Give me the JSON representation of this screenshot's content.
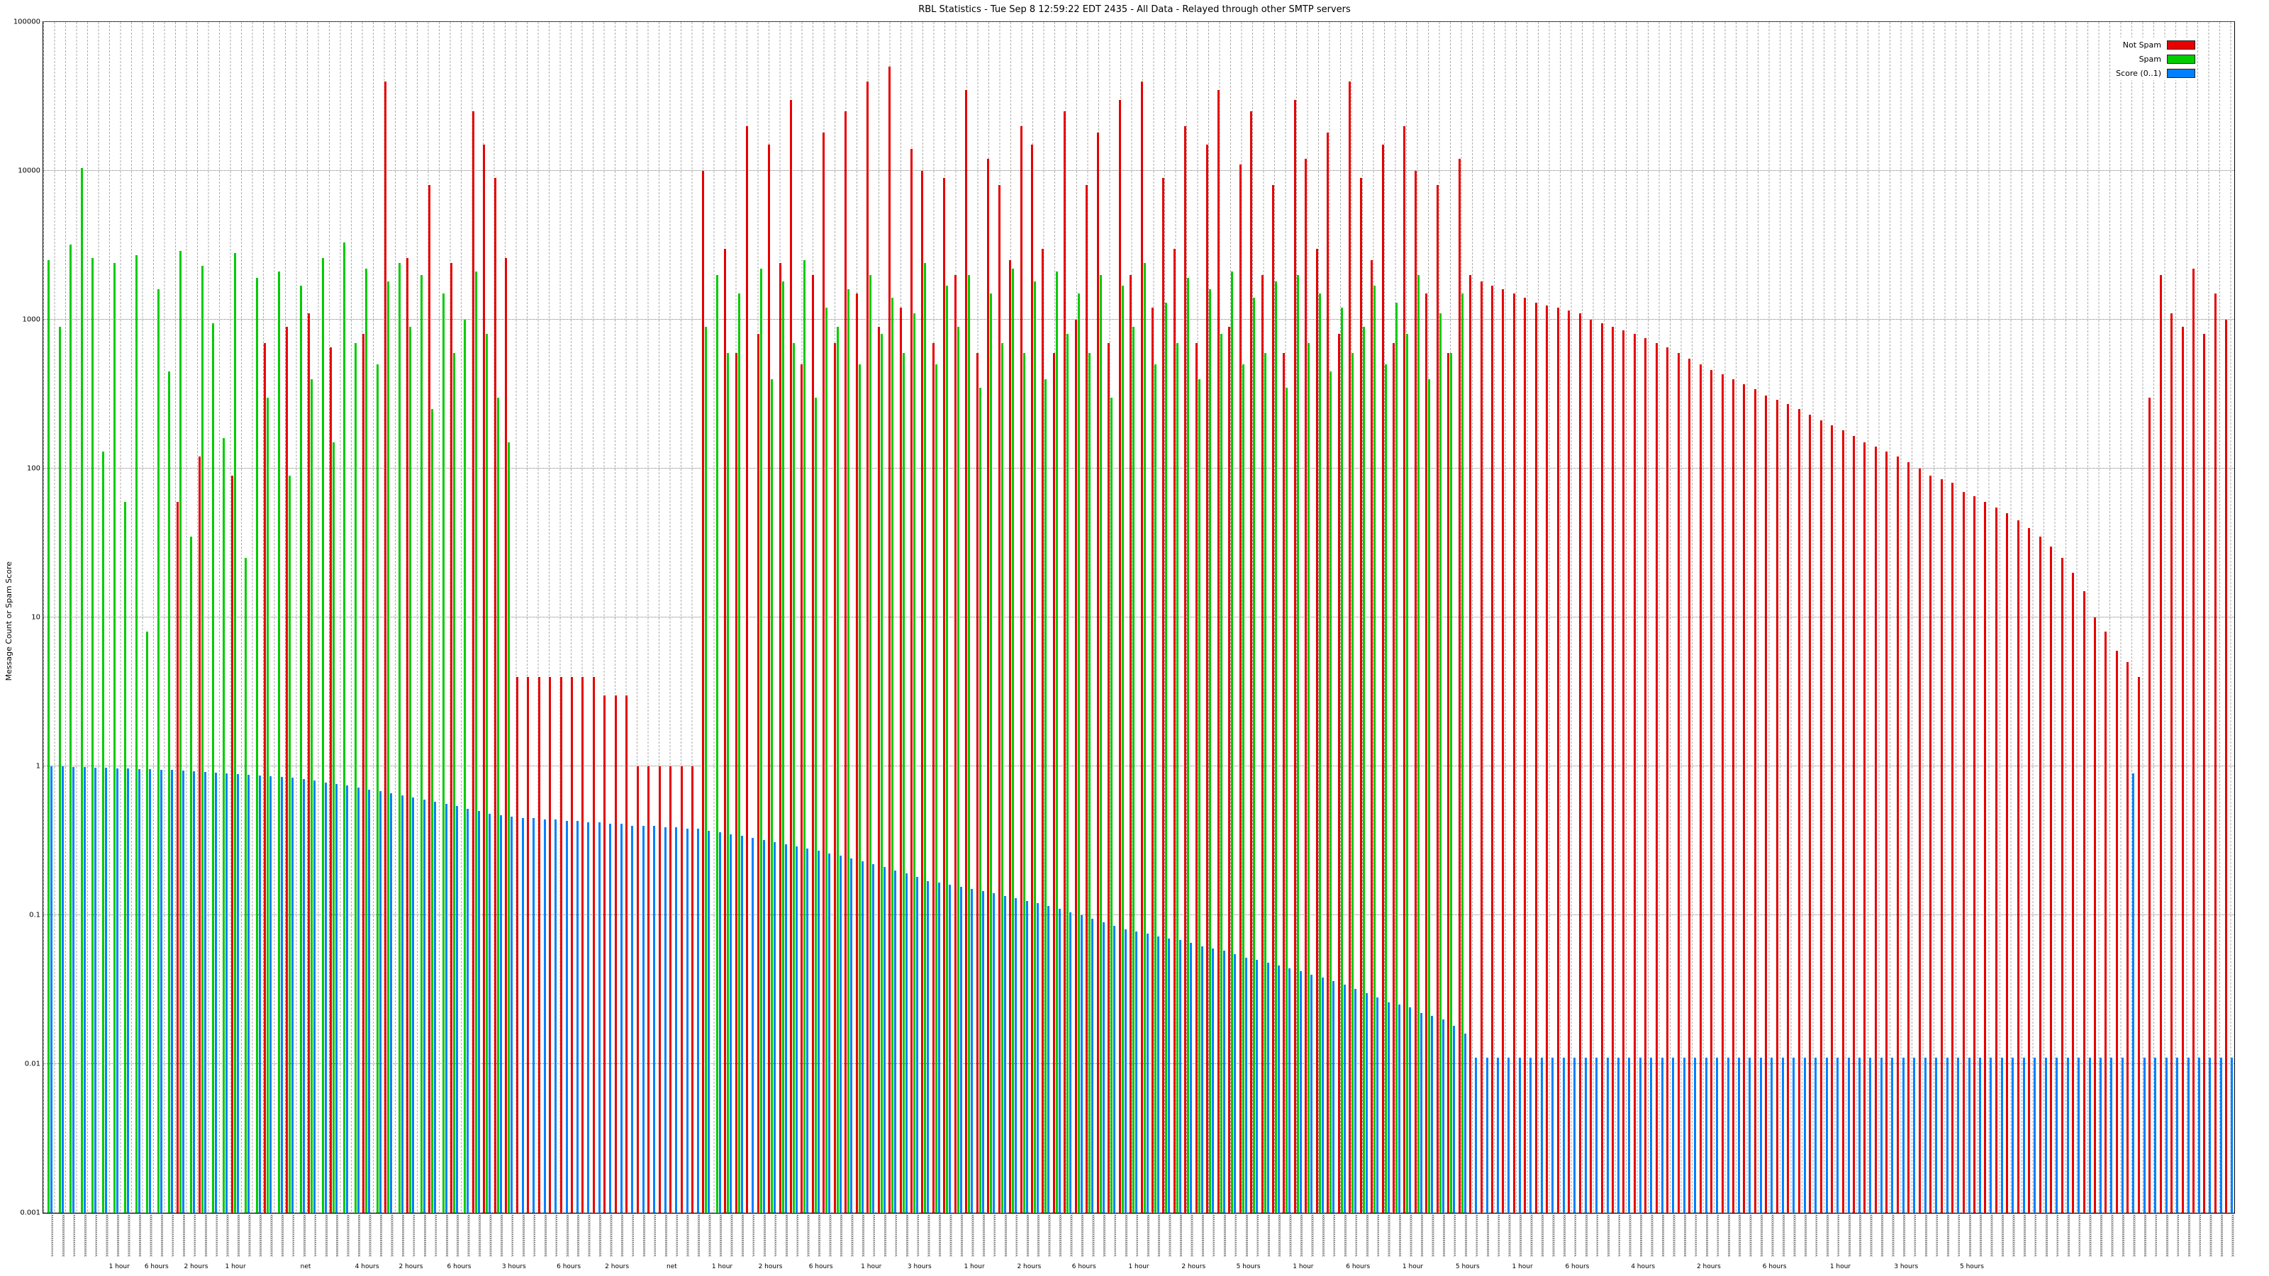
{
  "title": "RBL Statistics - Tue Sep 8 12:59:22 EDT 2435 - All Data - Relayed through other SMTP servers",
  "ylabel": "Message Count or Spam Score",
  "legend": [
    {
      "label": "Not Spam",
      "color": "#e60000"
    },
    {
      "label": "Spam",
      "color": "#00cc00"
    },
    {
      "label": "Score (0..1)",
      "color": "#0080ff"
    }
  ],
  "chart_data": {
    "type": "bar",
    "scale": "log",
    "grid": true,
    "legend_position": "top-right",
    "ylim": [
      0.001,
      100000
    ],
    "yticks": [
      0.001,
      0.01,
      0.1,
      1,
      10,
      100,
      1000,
      10000,
      100000
    ],
    "ytick_labels": [
      "0.001",
      "0.01",
      "0.1",
      "1",
      "10",
      "100",
      "1000",
      "10000",
      "100000"
    ],
    "x_count": 200,
    "x_tick_labels_illegible": true,
    "x_tick_placeholder": "xxxxxxxxxxxxxxxxxxxxxxxx",
    "x_group_labels": [
      {
        "pos": 0.035,
        "label": "1 hour"
      },
      {
        "pos": 0.052,
        "label": "6 hours"
      },
      {
        "pos": 0.07,
        "label": "2 hours"
      },
      {
        "pos": 0.088,
        "label": "1 hour"
      },
      {
        "pos": 0.12,
        "label": "net"
      },
      {
        "pos": 0.148,
        "label": "4 hours"
      },
      {
        "pos": 0.168,
        "label": "2 hours"
      },
      {
        "pos": 0.19,
        "label": "6 hours"
      },
      {
        "pos": 0.215,
        "label": "3 hours"
      },
      {
        "pos": 0.24,
        "label": "6 hours"
      },
      {
        "pos": 0.262,
        "label": "2 hours"
      },
      {
        "pos": 0.287,
        "label": "net"
      },
      {
        "pos": 0.31,
        "label": "1 hour"
      },
      {
        "pos": 0.332,
        "label": "2 hours"
      },
      {
        "pos": 0.355,
        "label": "6 hours"
      },
      {
        "pos": 0.378,
        "label": "1 hour"
      },
      {
        "pos": 0.4,
        "label": "3 hours"
      },
      {
        "pos": 0.425,
        "label": "1 hour"
      },
      {
        "pos": 0.45,
        "label": "2 hours"
      },
      {
        "pos": 0.475,
        "label": "6 hours"
      },
      {
        "pos": 0.5,
        "label": "1 hour"
      },
      {
        "pos": 0.525,
        "label": "2 hours"
      },
      {
        "pos": 0.55,
        "label": "5 hours"
      },
      {
        "pos": 0.575,
        "label": "1 hour"
      },
      {
        "pos": 0.6,
        "label": "6 hours"
      },
      {
        "pos": 0.625,
        "label": "1 hour"
      },
      {
        "pos": 0.65,
        "label": "5 hours"
      },
      {
        "pos": 0.675,
        "label": "1 hour"
      },
      {
        "pos": 0.7,
        "label": "6 hours"
      },
      {
        "pos": 0.73,
        "label": "4 hours"
      },
      {
        "pos": 0.76,
        "label": "2 hours"
      },
      {
        "pos": 0.79,
        "label": "6 hours"
      },
      {
        "pos": 0.82,
        "label": "1 hour"
      },
      {
        "pos": 0.85,
        "label": "3 hours"
      },
      {
        "pos": 0.88,
        "label": "5 hours"
      }
    ],
    "series": [
      {
        "name": "Not Spam",
        "color": "#e60000",
        "values": [
          0,
          0,
          0,
          0,
          0,
          0,
          0,
          0,
          0,
          0,
          0,
          0,
          60,
          0,
          120,
          0,
          0,
          90,
          0,
          0,
          700,
          0,
          900,
          0,
          1100,
          0,
          650,
          0,
          0,
          800,
          0,
          40000,
          0,
          2600,
          0,
          8000,
          0,
          2400,
          0,
          25000,
          15000,
          9000,
          2600,
          4,
          4,
          4,
          4,
          4,
          4,
          4,
          4,
          3,
          3,
          3,
          1,
          1,
          1,
          1,
          1,
          1,
          10000,
          0,
          3000,
          600,
          20000,
          800,
          15000,
          2400,
          30000,
          500,
          2000,
          18000,
          700,
          25000,
          1500,
          40000,
          900,
          50000,
          1200,
          14000,
          10000,
          700,
          9000,
          2000,
          35000,
          600,
          12000,
          8000,
          2500,
          20000,
          15000,
          3000,
          600,
          25000,
          1000,
          8000,
          18000,
          700,
          30000,
          2000,
          40000,
          1200,
          9000,
          3000,
          20000,
          700,
          15000,
          35000,
          900,
          11000,
          25000,
          2000,
          8000,
          600,
          30000,
          12000,
          3000,
          18000,
          800,
          40000,
          9000,
          2500,
          15000,
          700,
          20000,
          10000,
          1500,
          8000,
          600,
          12000,
          2000,
          1800,
          1700,
          1600,
          1500,
          1400,
          1300,
          1250,
          1200,
          1150,
          1100,
          1000,
          950,
          900,
          850,
          800,
          750,
          700,
          650,
          600,
          550,
          500,
          460,
          430,
          400,
          370,
          340,
          310,
          290,
          270,
          250,
          230,
          210,
          195,
          180,
          165,
          150,
          140,
          130,
          120,
          110,
          100,
          90,
          85,
          80,
          70,
          65,
          60,
          55,
          50,
          45,
          40,
          35,
          30,
          25,
          20,
          15,
          10,
          8,
          6,
          5,
          4,
          300,
          2000,
          1100,
          900,
          2200,
          800,
          1500,
          1000
        ]
      },
      {
        "name": "Spam",
        "color": "#00cc00",
        "values": [
          2500,
          900,
          3200,
          10500,
          2600,
          130,
          2400,
          60,
          2700,
          8,
          1600,
          450,
          2900,
          35,
          2300,
          950,
          160,
          2800,
          25,
          1900,
          300,
          2100,
          90,
          1700,
          400,
          2600,
          150,
          3300,
          700,
          2200,
          500,
          1800,
          2400,
          900,
          2000,
          250,
          1500,
          600,
          1000,
          2100,
          800,
          300,
          150,
          0,
          0,
          0,
          0,
          0,
          0,
          0,
          0,
          0,
          0,
          0,
          0,
          0,
          0,
          0,
          0,
          0,
          900,
          2000,
          600,
          1500,
          0,
          2200,
          400,
          1800,
          700,
          2500,
          300,
          1200,
          900,
          1600,
          500,
          2000,
          800,
          1400,
          600,
          1100,
          2400,
          500,
          1700,
          900,
          2000,
          350,
          1500,
          700,
          2200,
          600,
          1800,
          400,
          2100,
          800,
          1500,
          600,
          2000,
          300,
          1700,
          900,
          2400,
          500,
          1300,
          700,
          1900,
          400,
          1600,
          800,
          2100,
          500,
          1400,
          600,
          1800,
          350,
          2000,
          700,
          1500,
          450,
          1200,
          600,
          900,
          1700,
          500,
          1300,
          800,
          2000,
          400,
          1100,
          600,
          1500,
          0,
          0,
          0,
          0,
          0,
          0,
          0,
          0,
          0,
          0,
          0,
          0,
          0,
          0,
          0,
          0,
          0,
          0,
          0,
          0,
          0,
          0,
          0,
          0,
          0,
          0,
          0,
          0,
          0,
          0,
          0,
          0,
          0,
          0,
          0,
          0,
          0,
          0,
          0,
          0,
          0,
          0,
          0,
          0,
          0,
          0,
          0,
          0,
          0,
          0,
          0,
          0,
          0,
          0,
          0,
          0,
          0,
          0,
          0,
          0,
          0,
          0,
          0,
          0,
          0,
          0,
          0,
          0,
          0,
          0
        ]
      },
      {
        "name": "Score (0..1)",
        "color": "#0080ff",
        "values": [
          1.0,
          1.0,
          0.99,
          0.99,
          0.98,
          0.98,
          0.97,
          0.97,
          0.96,
          0.96,
          0.95,
          0.95,
          0.94,
          0.93,
          0.92,
          0.91,
          0.9,
          0.89,
          0.88,
          0.87,
          0.86,
          0.85,
          0.84,
          0.82,
          0.8,
          0.78,
          0.76,
          0.74,
          0.72,
          0.7,
          0.68,
          0.66,
          0.64,
          0.62,
          0.6,
          0.58,
          0.56,
          0.54,
          0.52,
          0.5,
          0.48,
          0.47,
          0.46,
          0.45,
          0.45,
          0.44,
          0.44,
          0.43,
          0.43,
          0.42,
          0.42,
          0.41,
          0.41,
          0.4,
          0.4,
          0.4,
          0.39,
          0.39,
          0.38,
          0.38,
          0.37,
          0.36,
          0.35,
          0.34,
          0.33,
          0.32,
          0.31,
          0.3,
          0.29,
          0.28,
          0.27,
          0.26,
          0.25,
          0.24,
          0.23,
          0.22,
          0.21,
          0.2,
          0.19,
          0.18,
          0.17,
          0.165,
          0.16,
          0.155,
          0.15,
          0.145,
          0.14,
          0.135,
          0.13,
          0.125,
          0.12,
          0.115,
          0.11,
          0.105,
          0.1,
          0.095,
          0.09,
          0.085,
          0.08,
          0.078,
          0.075,
          0.072,
          0.07,
          0.068,
          0.065,
          0.062,
          0.06,
          0.058,
          0.055,
          0.052,
          0.05,
          0.048,
          0.046,
          0.044,
          0.042,
          0.04,
          0.038,
          0.036,
          0.034,
          0.032,
          0.03,
          0.028,
          0.026,
          0.025,
          0.024,
          0.022,
          0.021,
          0.02,
          0.018,
          0.016,
          0.011,
          0.011,
          0.011,
          0.011,
          0.011,
          0.011,
          0.011,
          0.011,
          0.011,
          0.011,
          0.011,
          0.011,
          0.011,
          0.011,
          0.011,
          0.011,
          0.011,
          0.011,
          0.011,
          0.011,
          0.011,
          0.011,
          0.011,
          0.011,
          0.011,
          0.011,
          0.011,
          0.011,
          0.011,
          0.011,
          0.011,
          0.011,
          0.011,
          0.011,
          0.011,
          0.011,
          0.011,
          0.011,
          0.011,
          0.011,
          0.011,
          0.011,
          0.011,
          0.011,
          0.011,
          0.011,
          0.011,
          0.011,
          0.011,
          0.011,
          0.011,
          0.011,
          0.011,
          0.011,
          0.011,
          0.011,
          0.011,
          0.011,
          0.011,
          0.011,
          0.9,
          0.011,
          0.011,
          0.011,
          0.011,
          0.011,
          0.011,
          0.011,
          0.011,
          0.011
        ]
      }
    ]
  }
}
